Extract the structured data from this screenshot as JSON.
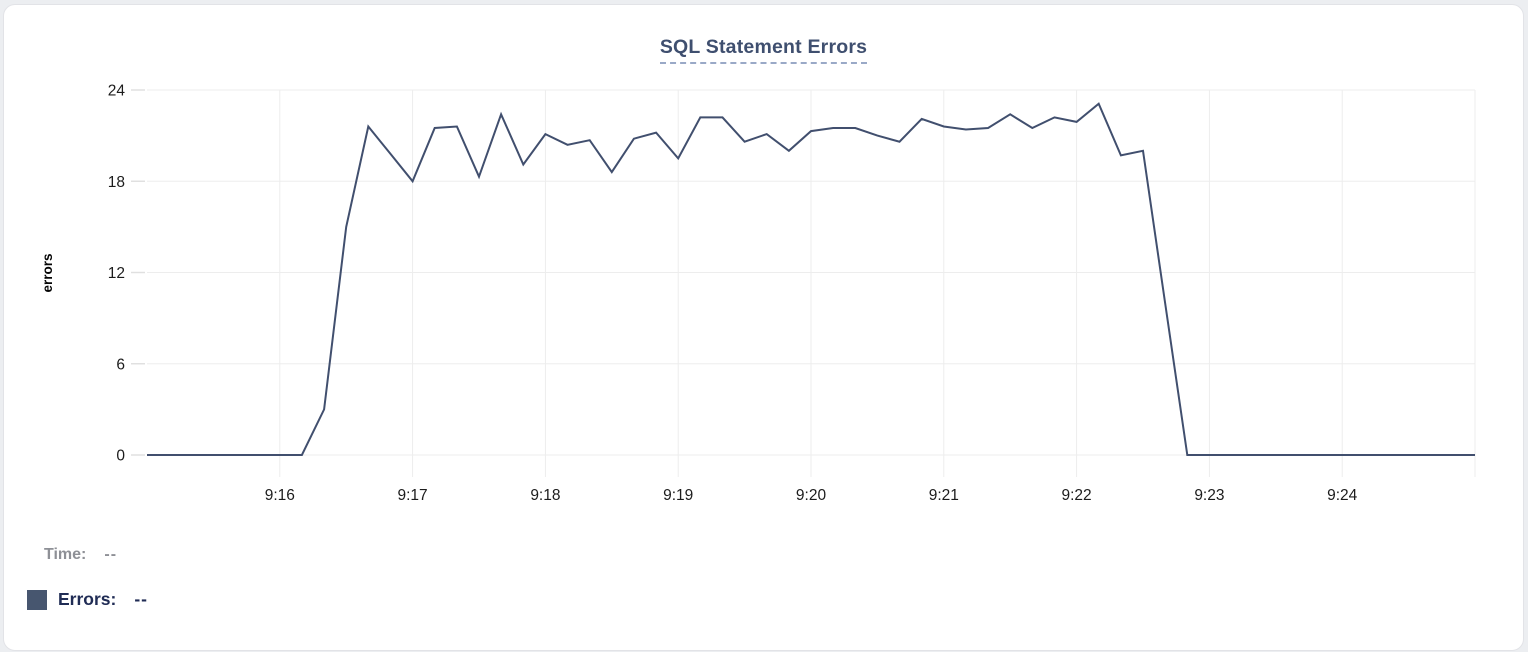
{
  "card": {
    "background": "#ffffff",
    "border_color": "#e2e3e7"
  },
  "chart_data": {
    "type": "line",
    "title": "SQL Statement Errors",
    "xlabel": "",
    "ylabel": "errors",
    "ylim": [
      0,
      24
    ],
    "y_ticks": [
      0,
      6,
      12,
      18,
      24
    ],
    "grid": true,
    "legend_position": "bottom-left",
    "line_color": "#414f6e",
    "grid_color": "#ededed",
    "tick_color": "#e0e0e0",
    "title_color": "#3f4f6f",
    "title_underline_color": "#9aa9c7",
    "x_ticks": [
      {
        "time": "9:16:00",
        "label": "9:16"
      },
      {
        "time": "9:17:00",
        "label": "9:17"
      },
      {
        "time": "9:18:00",
        "label": "9:18"
      },
      {
        "time": "9:19:00",
        "label": "9:19"
      },
      {
        "time": "9:20:00",
        "label": "9:20"
      },
      {
        "time": "9:21:00",
        "label": "9:21"
      },
      {
        "time": "9:22:00",
        "label": "9:22"
      },
      {
        "time": "9:23:00",
        "label": "9:23"
      },
      {
        "time": "9:24:00",
        "label": "9:24"
      },
      {
        "time": "9:25:00",
        "label": ""
      }
    ],
    "x": [
      "9:15:00",
      "9:15:10",
      "9:15:20",
      "9:15:30",
      "9:15:40",
      "9:15:50",
      "9:16:00",
      "9:16:10",
      "9:16:20",
      "9:16:30",
      "9:16:40",
      "9:16:50",
      "9:17:00",
      "9:17:10",
      "9:17:20",
      "9:17:30",
      "9:17:40",
      "9:17:50",
      "9:18:00",
      "9:18:10",
      "9:18:20",
      "9:18:30",
      "9:18:40",
      "9:18:50",
      "9:19:00",
      "9:19:10",
      "9:19:20",
      "9:19:30",
      "9:19:40",
      "9:19:50",
      "9:20:00",
      "9:20:10",
      "9:20:20",
      "9:20:30",
      "9:20:40",
      "9:20:50",
      "9:21:00",
      "9:21:10",
      "9:21:20",
      "9:21:30",
      "9:21:40",
      "9:21:50",
      "9:22:00",
      "9:22:10",
      "9:22:20",
      "9:22:30",
      "9:22:40",
      "9:22:50",
      "9:23:00",
      "9:23:10",
      "9:23:20",
      "9:23:30",
      "9:23:40",
      "9:23:50",
      "9:24:00",
      "9:24:10",
      "9:24:20",
      "9:24:30",
      "9:24:40",
      "9:24:50",
      "9:25:00"
    ],
    "series": [
      {
        "name": "Errors",
        "values": [
          0,
          0,
          0,
          0,
          0,
          0,
          0,
          0,
          3,
          15,
          21.6,
          19.8,
          18,
          21.5,
          21.6,
          18.3,
          22.4,
          19.1,
          21.1,
          20.4,
          20.7,
          18.6,
          20.8,
          21.2,
          19.5,
          22.2,
          22.2,
          20.6,
          21.1,
          20,
          21.3,
          21.5,
          21.5,
          21,
          20.6,
          22.1,
          21.6,
          21.4,
          21.5,
          22.4,
          21.5,
          22.2,
          21.9,
          23.1,
          19.7,
          20,
          10,
          0,
          0,
          0,
          0,
          0,
          0,
          0,
          0,
          0,
          0,
          0,
          0,
          0,
          0
        ]
      }
    ]
  },
  "legend": {
    "time_label": "Time:",
    "time_value": "--",
    "errors_label": "Errors:",
    "errors_value": "--",
    "time_color": "#8e9096",
    "errors_color": "#202c55",
    "swatch_color": "#47566f"
  }
}
